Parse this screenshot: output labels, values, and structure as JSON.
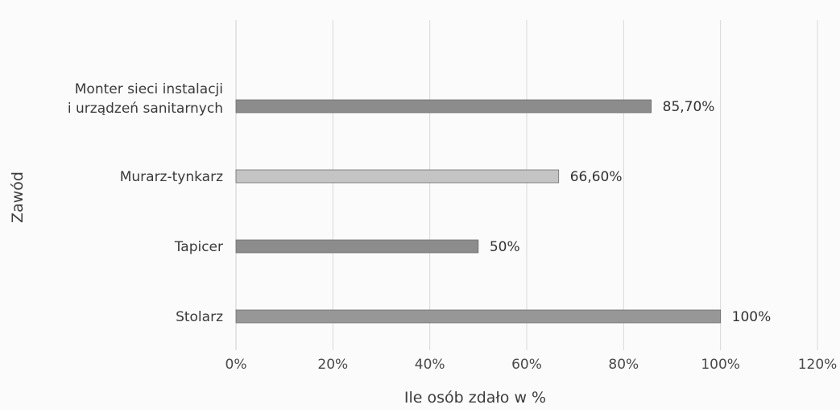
{
  "chart_data": {
    "type": "bar",
    "orientation": "horizontal",
    "title": "",
    "xlabel": "Ile osób zdało w %",
    "ylabel": "Zawód",
    "categories": [
      [
        "Monter sieci instalacji",
        "i urządzeń sanitarnych"
      ],
      [
        "Murarz-tynkarz"
      ],
      [
        "Tapicer"
      ],
      [
        "Stolarz"
      ]
    ],
    "values": [
      85.7,
      66.6,
      50,
      100
    ],
    "data_labels": [
      "85,70%",
      "66,60%",
      "50%",
      "100%"
    ],
    "bar_colors": [
      "#8c8c8c",
      "#c4c4c4",
      "#8c8c8c",
      "#979797"
    ],
    "xlim": [
      0,
      120
    ],
    "x_ticks": [
      "0%",
      "20%",
      "40%",
      "60%",
      "80%",
      "100%",
      "120%"
    ],
    "grid": true,
    "legend": "none"
  }
}
